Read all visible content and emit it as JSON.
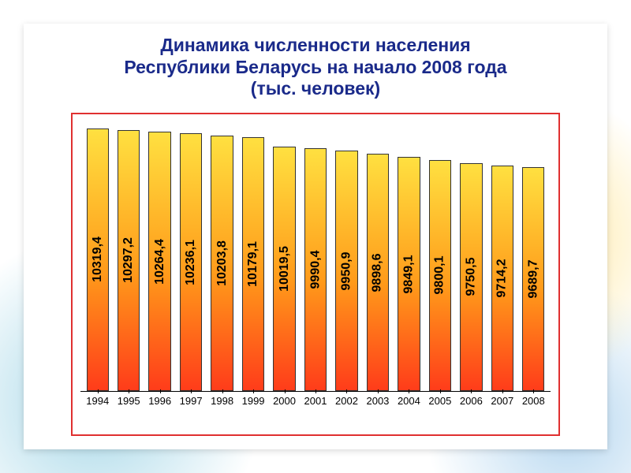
{
  "title": "Динамика численности населения\nРеспублики Беларусь на начало 2008 года\n(тыс. человек)",
  "chart": {
    "type": "bar",
    "categories": [
      "1994",
      "1995",
      "1996",
      "1997",
      "1998",
      "1999",
      "2000",
      "2001",
      "2002",
      "2003",
      "2004",
      "2005",
      "2006",
      "2007",
      "2008"
    ],
    "values": [
      10319.4,
      10297.2,
      10264.4,
      10236.1,
      10203.8,
      10179.1,
      10019.5,
      9990.4,
      9950.9,
      9898.6,
      9849.1,
      9800.1,
      9750.5,
      9714.2,
      9689.7
    ],
    "value_labels": [
      "10319,4",
      "10297,2",
      "10264,4",
      "10236,1",
      "10203,8",
      "10179,1",
      "10019,5",
      "9990,4",
      "9950,9",
      "9898,6",
      "9849,1",
      "9800,1",
      "9750,5",
      "9714,2",
      "9689,7"
    ],
    "bar_gradient_top": "#ffe040",
    "bar_gradient_bottom": "#ff3c1a",
    "bar_border": "#333333",
    "frame_border": "#e03030",
    "background": "#ffffff",
    "axis_color": "#000000",
    "title_color": "#1a2a8a",
    "title_fontsize": 23,
    "label_fontsize": 16,
    "xlabel_fontsize": 13,
    "bar_width": 0.8,
    "y_domain_min": 6000,
    "y_domain_max": 10400
  }
}
